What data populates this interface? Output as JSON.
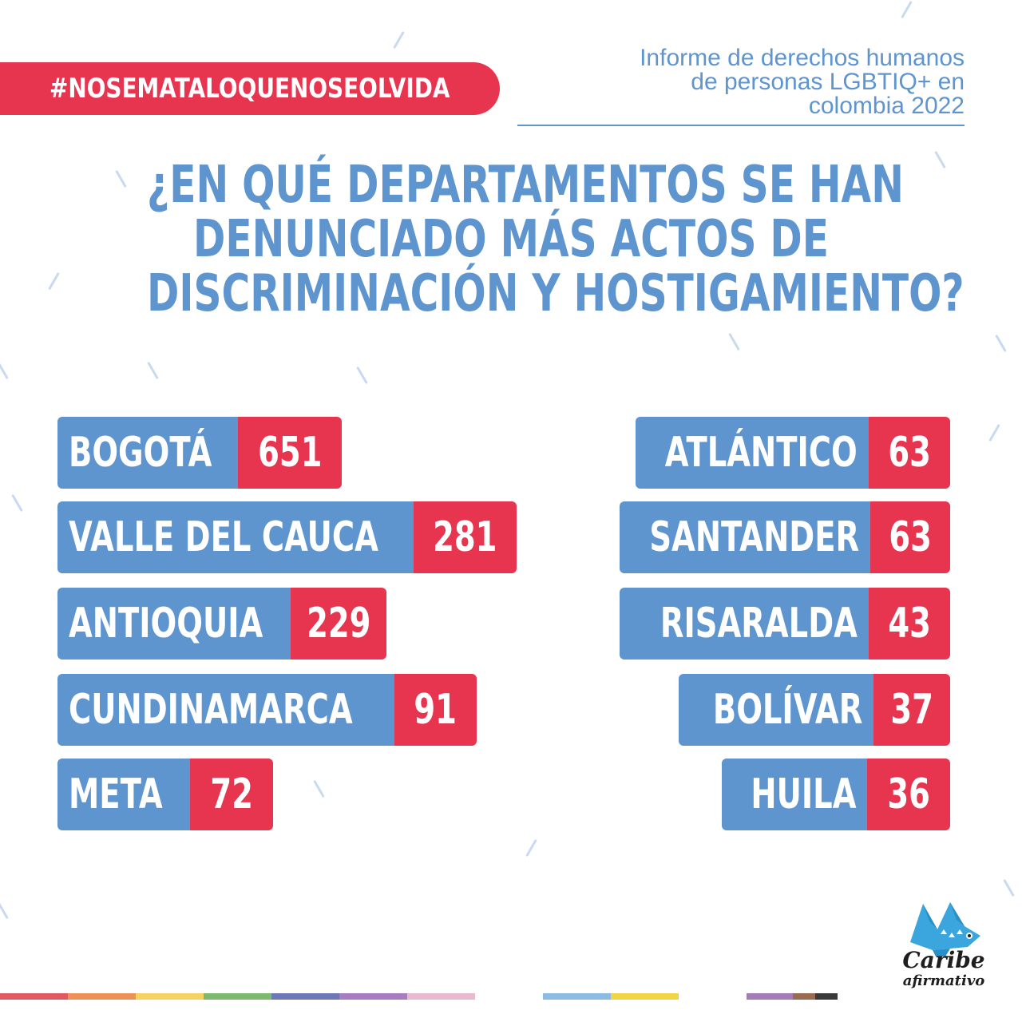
{
  "hashtag": "#NOSEMATALOQUENOSEOLVIDA",
  "report": {
    "line1": "Informe de derechos humanos",
    "line2": "de personas LGBTIQ+ en",
    "line3": "colombia 2022"
  },
  "question": {
    "line1": "¿EN QUÉ DEPARTAMENTOS SE HAN",
    "line2": "DENUNCIADO MÁS ACTOS DE",
    "line3": "DISCRIMINACIÓN Y HOSTIGAMIENTO?"
  },
  "departments_left": [
    {
      "name": "BOGOTÁ",
      "count": "651"
    },
    {
      "name": "VALLE DEL CAUCA",
      "count": "281"
    },
    {
      "name": "ANTIOQUIA",
      "count": "229"
    },
    {
      "name": "CUNDINAMARCA",
      "count": "91"
    },
    {
      "name": "META",
      "count": "72"
    }
  ],
  "departments_right": [
    {
      "name": "ATLÁNTICO",
      "count": "63"
    },
    {
      "name": "SANTANDER",
      "count": "63"
    },
    {
      "name": "RISARALDA",
      "count": "43"
    },
    {
      "name": "BOLÍVAR",
      "count": "37"
    },
    {
      "name": "HUILA",
      "count": "36"
    }
  ],
  "logo": {
    "line1": "Caribe",
    "line2": "afirmativo",
    "icon": "fish-icon"
  },
  "colors": {
    "blue": "#5e95cf",
    "red": "#e8354f",
    "white": "#ffffff"
  }
}
